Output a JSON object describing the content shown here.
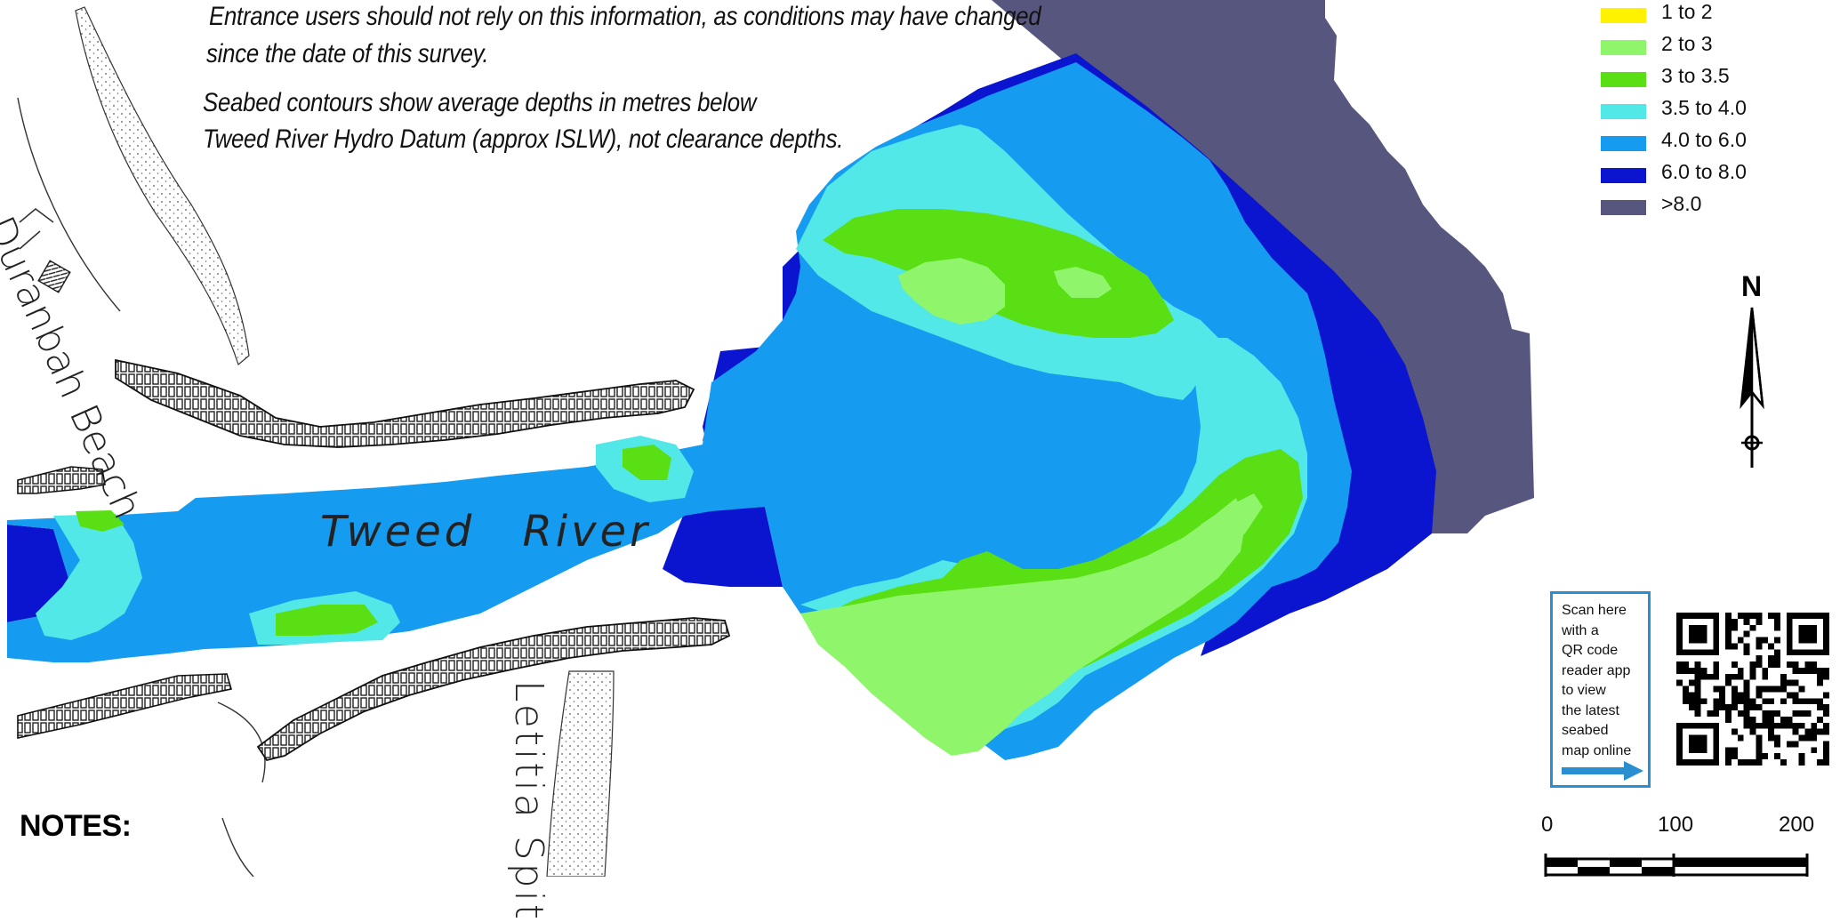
{
  "notes": {
    "line1": "Entrance users should not rely on this information, as conditions may have changed",
    "line2": "since the date of this survey.",
    "line3": "Seabed contours show average depths in metres below",
    "line4": "Tweed River Hydro Datum (approx ISLW), not clearance depths.",
    "heading": "NOTES:"
  },
  "map_labels": {
    "beach": "Duranbah Beach",
    "river": "Tweed River",
    "spit": "Letitia Spit"
  },
  "legend": {
    "items": [
      {
        "label": "1 to 2",
        "color": "#fff200"
      },
      {
        "label": "2 to 3",
        "color": "#8ff56a"
      },
      {
        "label": "3 to 3.5",
        "color": "#5adf14"
      },
      {
        "label": "3.5 to 4.0",
        "color": "#52e8e8"
      },
      {
        "label": "4.0 to 6.0",
        "color": "#159bef"
      },
      {
        "label": "6.0 to 8.0",
        "color": "#0b15cf"
      },
      {
        "label": ">8.0",
        "color": "#57567f"
      }
    ]
  },
  "north": {
    "label": "N"
  },
  "qr": {
    "lines": [
      "Scan here",
      "with a",
      "QR code",
      "reader app",
      "to view",
      "the latest",
      "seabed",
      "map online"
    ],
    "accent": "#2a8fd0"
  },
  "scale_bar": {
    "ticks": [
      "0",
      "100",
      "200"
    ]
  }
}
